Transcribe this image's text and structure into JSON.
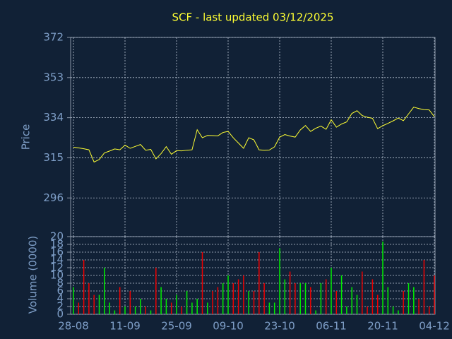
{
  "chart_data": [
    {
      "type": "line",
      "title": "SCF - last updated 03/12/2025",
      "ylabel": "Price",
      "color": "#ffff33",
      "values": [
        320,
        319.7,
        319.3,
        318.8,
        313,
        314.2,
        317.3,
        318.2,
        319.2,
        318.8,
        321,
        319.5,
        320.4,
        321.3,
        318.6,
        319,
        314.5,
        317,
        320.3,
        316.7,
        318.4,
        318.3,
        318.6,
        318.8,
        328.3,
        324.5,
        325.6,
        325.5,
        325.4,
        327,
        327.5,
        324.5,
        322,
        319.5,
        324.5,
        323.5,
        318.8,
        318.6,
        318.7,
        320.2,
        324.8,
        326,
        325.3,
        324.8,
        328.2,
        330.3,
        327.5,
        329,
        330,
        328.5,
        333,
        329.5,
        331,
        332,
        336,
        337.3,
        335,
        334.2,
        333.7,
        328.8,
        330.2,
        331.3,
        332.5,
        333.8,
        332.6,
        335.8,
        339,
        338.3,
        337.8,
        337.7,
        334.5
      ],
      "ylim": [
        277.7,
        372
      ],
      "yticks": [
        296,
        315,
        334,
        353,
        372
      ],
      "grid": true
    },
    {
      "type": "bar",
      "ylabel": "Volume (0000)",
      "up_color": "#00ee00",
      "down_color": "#ee0000",
      "categories": [
        "28-08",
        null,
        null,
        null,
        null,
        null,
        null,
        null,
        null,
        null,
        "11-09",
        null,
        null,
        null,
        null,
        null,
        null,
        null,
        null,
        null,
        "25-09",
        null,
        null,
        null,
        null,
        null,
        null,
        null,
        null,
        null,
        "09-10",
        null,
        null,
        null,
        null,
        null,
        null,
        null,
        null,
        null,
        "23-10",
        null,
        null,
        null,
        null,
        null,
        null,
        null,
        null,
        null,
        "06-11",
        null,
        null,
        null,
        null,
        null,
        null,
        null,
        null,
        null,
        "20-11",
        null,
        null,
        null,
        null,
        null,
        null,
        null,
        null,
        null,
        "04-12"
      ],
      "values": [
        7,
        3,
        14,
        8,
        5,
        5,
        12,
        3,
        1,
        7,
        2,
        6,
        2,
        4,
        2,
        1,
        12,
        7,
        4,
        3,
        5,
        2,
        6,
        3,
        4,
        16,
        3,
        6,
        7,
        8,
        10,
        8,
        9,
        10,
        6,
        6,
        16,
        8,
        3,
        3,
        17,
        9,
        11,
        8,
        8,
        8,
        7,
        1,
        8,
        9,
        12,
        6,
        10,
        2,
        7,
        5,
        11,
        2,
        9,
        5,
        18.7,
        7,
        2,
        1,
        6,
        8,
        7,
        4,
        14,
        2,
        10
      ],
      "ylim": [
        0,
        20
      ],
      "yticks": [
        0,
        2,
        4,
        6,
        8,
        10,
        12,
        14,
        16,
        18,
        20
      ],
      "grid": true
    }
  ]
}
